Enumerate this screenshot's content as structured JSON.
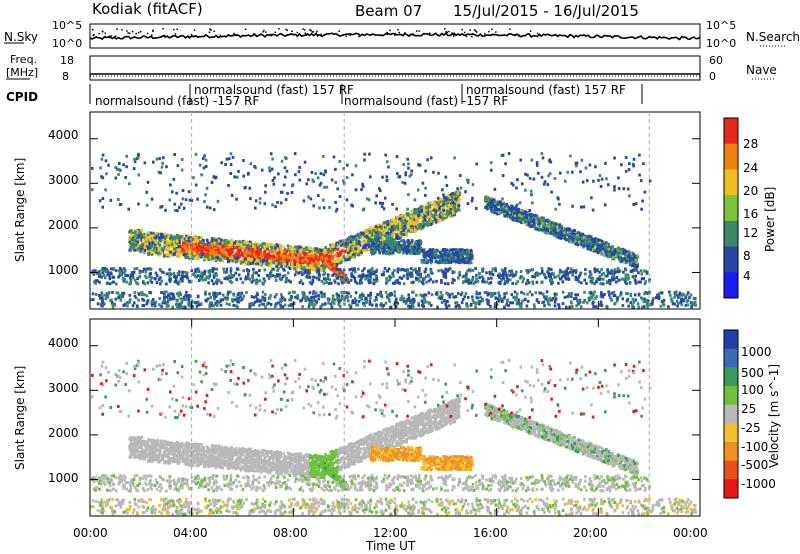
{
  "header": {
    "station": "Kodiak (fitACF)",
    "beam": "Beam 07",
    "date_range": "15/Jul/2015 - 16/Jul/2015"
  },
  "strip_nsky": {
    "left_label": "N.Sky",
    "right_label": "N.Search",
    "left_ticks": [
      "10^5",
      "10^0"
    ],
    "right_ticks": [
      "10^5",
      "10^0"
    ]
  },
  "strip_freq": {
    "left_label_1": "Freq.",
    "left_label_2": "[MHz]",
    "right_label": "Nave",
    "left_ticks": [
      "18",
      "8"
    ],
    "right_ticks": [
      "60",
      "0"
    ]
  },
  "cpid": {
    "label": "CPID",
    "segments": [
      {
        "text": "normalsound (fast) -157 RF",
        "row": "lower"
      },
      {
        "text": "normalsound (fast) 157 RF",
        "row": "upper"
      },
      {
        "text": "normalsound (fast) -157 RF",
        "row": "lower"
      },
      {
        "text": "normalsound (fast) 157 RF",
        "row": "upper"
      }
    ]
  },
  "chart_data": [
    {
      "type": "heatmap",
      "panel": "power",
      "ylabel": "Slant Range [km]",
      "xlabel": "",
      "y_ticks": [
        "1000",
        "2000",
        "3000",
        "4000"
      ],
      "ylim": [
        180,
        4600
      ],
      "xlim": [
        "00:00",
        "24:00"
      ],
      "colorbar_label": "Power [dB]",
      "colorbar_ticks": [
        "4",
        "8",
        "12",
        "16",
        "20",
        "24",
        "28"
      ],
      "colors": [
        "#1c1cf0",
        "#2848a8",
        "#3a8a6a",
        "#7cc23a",
        "#f0c020",
        "#f08010",
        "#e82818"
      ]
    },
    {
      "type": "heatmap",
      "panel": "velocity",
      "ylabel": "Slant Range [km]",
      "xlabel": "Time UT",
      "y_ticks": [
        "1000",
        "2000",
        "3000",
        "4000"
      ],
      "x_ticks": [
        "00:00",
        "04:00",
        "08:00",
        "12:00",
        "16:00",
        "20:00",
        "00:00"
      ],
      "ylim": [
        180,
        4600
      ],
      "xlim": [
        "00:00",
        "24:00"
      ],
      "colorbar_label": "Velocity [m s^-1]",
      "colorbar_ticks": [
        "1000",
        "500",
        "100",
        "25",
        "-25",
        "-100",
        "-500",
        "-1000"
      ],
      "colors": [
        "#2040b0",
        "#3a6ab8",
        "#3a9a5a",
        "#70c040",
        "#b8b8b8",
        "#f0c030",
        "#f09020",
        "#e85018",
        "#e81818"
      ]
    }
  ]
}
